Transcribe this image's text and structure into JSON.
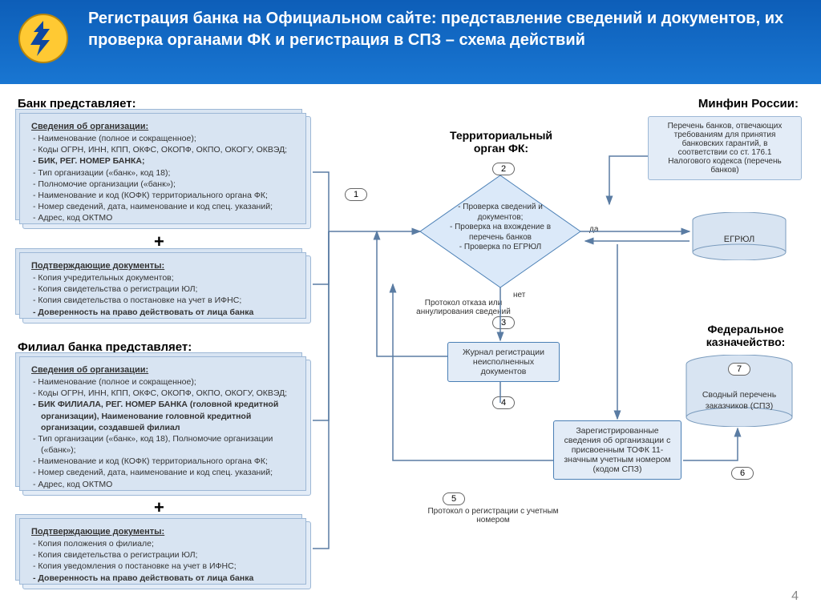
{
  "header": {
    "title": "Регистрация банка на Официальном сайте: представление сведений и документов, их проверка органами ФК и регистрация в СПЗ – схема действий"
  },
  "page_number": "4",
  "colors": {
    "header_grad_top": "#0d5eb8",
    "header_grad_bot": "#1976d2",
    "box_bg": "#e3ecf7",
    "box_border": "#9db8d6",
    "diamond_fill": "#dbe9f9",
    "diamond_stroke": "#4a7fb5",
    "arrow": "#5a7ca3",
    "cyl_fill": "#d8e4f2",
    "cyl_stroke": "#7a9bbd"
  },
  "sections": {
    "bank": "Банк представляет:",
    "branch": "Филиал банка представляет:",
    "minfin": "Минфин России:",
    "tofk": "Территориальный орган ФК:",
    "fk": "Федеральное казначейство:"
  },
  "bank_info": {
    "title": "Сведения об организации:",
    "items": [
      {
        "t": "Наименование (полное и сокращенное);"
      },
      {
        "t": "Коды ОГРН, ИНН, КПП, ОКФС, ОКОПФ, ОКПО, ОКОГУ, ОКВЭД;"
      },
      {
        "t": "БИК, РЕГ. НОМЕР БАНКА;",
        "bold": true
      },
      {
        "t": "Тип организации («банк», код 18);"
      },
      {
        "t": "Полномочие организации («банк»);"
      },
      {
        "t": "Наименование и код (КОФК) территориального органа ФК;"
      },
      {
        "t": "Номер сведений, дата, наименование и код спец. указаний;"
      },
      {
        "t": "Адрес, код ОКТМО"
      }
    ]
  },
  "bank_docs": {
    "title": "Подтверждающие документы:",
    "items": [
      {
        "t": "Копия учредительных документов;"
      },
      {
        "t": "Копия свидетельства о регистрации ЮЛ;"
      },
      {
        "t": "Копия свидетельства о постановке на учет в ИФНС;"
      },
      {
        "t": "Доверенность на право действовать от лица банка",
        "bold": true
      }
    ]
  },
  "branch_info": {
    "title": "Сведения об организации:",
    "items": [
      {
        "t": "Наименование (полное и сокращенное);"
      },
      {
        "t": "Коды ОГРН, ИНН, КПП, ОКФС, ОКОПФ, ОКПО, ОКОГУ, ОКВЭД;"
      },
      {
        "t": "БИК ФИЛИАЛА, РЕГ. НОМЕР БАНКА (головной кредитной организации), Наименование головной кредитной организации, создавшей филиал",
        "bold": true
      },
      {
        "t": "Тип организации («банк», код 18), Полномочие организации («банк»);"
      },
      {
        "t": "Наименование и код (КОФК) территориального органа ФК;"
      },
      {
        "t": "Номер сведений, дата, наименование и код спец. указаний;"
      },
      {
        "t": "Адрес, код ОКТМО"
      }
    ]
  },
  "branch_docs": {
    "title": "Подтверждающие документы:",
    "items": [
      {
        "t": "Копия положения о филиале;"
      },
      {
        "t": "Копия свидетельства о регистрации ЮЛ;"
      },
      {
        "t": "Копия уведомления о постановке на учет в ИФНС;"
      },
      {
        "t": "Доверенность на право действовать от лица банка",
        "bold": true
      }
    ]
  },
  "minfin_box": "Перечень банков, отвечающих требованиям для принятия банковских гарантий, в соответствии со ст. 176.1 Налогового кодекса (перечень банков)",
  "diamond_text": "- Проверка сведений и документов;\n- Проверка на вхождение в перечень банков\n- Проверка по ЕГРЮЛ",
  "labels": {
    "da": "да",
    "net": "нет",
    "reject": "Протокол отказа или аннулирования сведений",
    "journal": "Журнал регистрации неисполненных документов",
    "registered": "Зарегистрированные сведения об организации с присвоенным ТОФК 11-значным учетным номером  (кодом СПЗ)",
    "proto5": "Протокол о регистрации с учетным номером",
    "egrul": "ЕГРЮЛ",
    "spz": "Сводный перечень заказчиков (СПЗ)"
  },
  "steps": {
    "1": "1",
    "2": "2",
    "3": "3",
    "4": "4",
    "5": "5",
    "6": "6",
    "7": "7"
  }
}
